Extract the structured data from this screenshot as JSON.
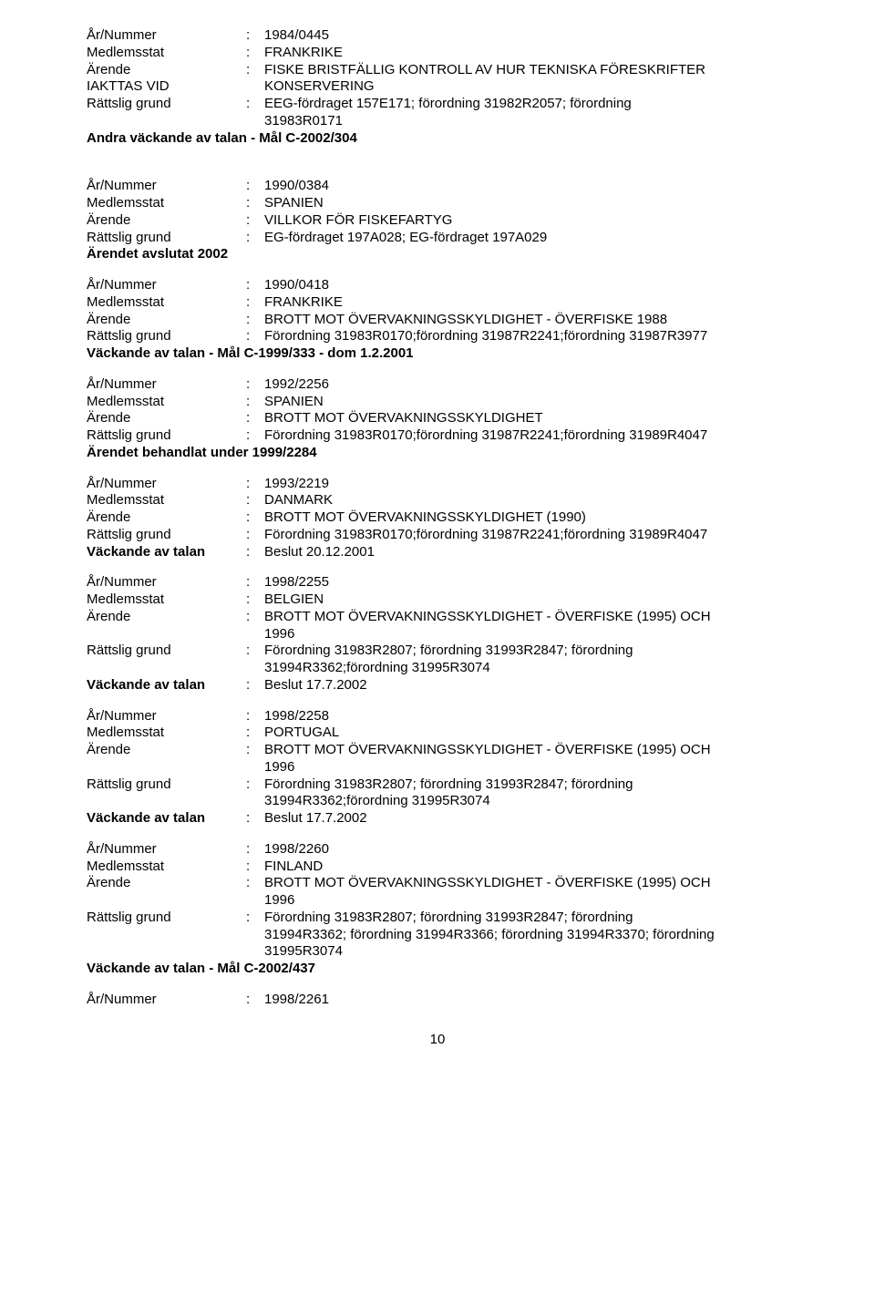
{
  "labels": {
    "year_number": "År/Nummer",
    "member_state": "Medlemsstat",
    "matter": "Ärende",
    "legal_basis": "Rättslig grund",
    "bringing_action": "Väckande av talan"
  },
  "entries": [
    {
      "id": "e0",
      "rows": [
        {
          "label": "year_number",
          "value": "1984/0445"
        },
        {
          "label": "member_state",
          "value": "FRANKRIKE"
        },
        {
          "label": "matter",
          "value": "FISKE BRISTFÄLLIG KONTROLL AV HUR TEKNISKA FÖRESKRIFTER IAKTTAS VID KONSERVERING",
          "two_line": true,
          "line1": "FISKE BRISTFÄLLIG KONTROLL AV HUR TEKNISKA FÖRESKRIFTER",
          "line2_label": "IAKTTAS VID",
          "line2_value": "KONSERVERING"
        },
        {
          "label": "legal_basis",
          "value": "EEG-fördraget 157E171; förordning 31982R2057; förordning 31983R0171",
          "two_line_simple": true,
          "line1": "EEG-fördraget 157E171; förordning 31982R2057; förordning",
          "line2": "31983R0171"
        }
      ],
      "footer": "Andra väckande av talan - Mål C-2002/304",
      "footer_bold": true,
      "gap_after": true
    },
    {
      "id": "e1",
      "rows": [
        {
          "label": "year_number",
          "value": "1990/0384"
        },
        {
          "label": "member_state",
          "value": "SPANIEN"
        },
        {
          "label": "matter",
          "value": "VILLKOR FÖR FISKEFARTYG"
        },
        {
          "label": "legal_basis",
          "value": "EG-fördraget 197A028; EG-fördraget 197A029"
        }
      ],
      "footer": "Ärendet avslutat 2002",
      "footer_bold": true
    },
    {
      "id": "e2",
      "rows": [
        {
          "label": "year_number",
          "value": "1990/0418"
        },
        {
          "label": "member_state",
          "value": "FRANKRIKE"
        },
        {
          "label": "matter",
          "value": "BROTT MOT ÖVERVAKNINGSSKYLDIGHET - ÖVERFISKE 1988"
        },
        {
          "label": "legal_basis",
          "value": "Förordning 31983R0170;förordning 31987R2241;förordning 31987R3977"
        }
      ],
      "footer": "Väckande av talan - Mål C-1999/333 - dom 1.2.2001",
      "footer_bold": true
    },
    {
      "id": "e3",
      "rows": [
        {
          "label": "year_number",
          "value": "1992/2256"
        },
        {
          "label": "member_state",
          "value": "SPANIEN"
        },
        {
          "label": "matter",
          "value": "BROTT MOT ÖVERVAKNINGSSKYLDIGHET"
        },
        {
          "label": "legal_basis",
          "value": "Förordning 31983R0170;förordning 31987R2241;förordning 31989R4047"
        }
      ],
      "footer": "Ärendet behandlat under 1999/2284",
      "footer_bold": true
    },
    {
      "id": "e4",
      "rows": [
        {
          "label": "year_number",
          "value": "1993/2219"
        },
        {
          "label": "member_state",
          "value": "DANMARK"
        },
        {
          "label": "matter",
          "value": "BROTT MOT ÖVERVAKNINGSSKYLDIGHET (1990)"
        },
        {
          "label": "legal_basis",
          "value": "Förordning 31983R0170;förordning 31987R2241;förordning 31989R4047"
        },
        {
          "label": "bringing_action",
          "value": "Beslut 20.12.2001",
          "bold_label": true
        }
      ]
    },
    {
      "id": "e5",
      "rows": [
        {
          "label": "year_number",
          "value": "1998/2255"
        },
        {
          "label": "member_state",
          "value": "BELGIEN"
        },
        {
          "label": "matter",
          "two_line_simple": true,
          "line1": "BROTT MOT ÖVERVAKNINGSSKYLDIGHET - ÖVERFISKE (1995) OCH",
          "line2": "1996"
        },
        {
          "label": "legal_basis",
          "two_line_simple": true,
          "line1": "Förordning 31983R2807; förordning 31993R2847; förordning",
          "line2": "31994R3362;förordning 31995R3074"
        },
        {
          "label": "bringing_action",
          "value": "Beslut 17.7.2002",
          "bold_label": true
        }
      ]
    },
    {
      "id": "e6",
      "rows": [
        {
          "label": "year_number",
          "value": "1998/2258"
        },
        {
          "label": "member_state",
          "value": "PORTUGAL"
        },
        {
          "label": "matter",
          "two_line_simple": true,
          "line1": "BROTT MOT ÖVERVAKNINGSSKYLDIGHET - ÖVERFISKE (1995) OCH",
          "line2": "1996"
        },
        {
          "label": "legal_basis",
          "two_line_simple": true,
          "line1": "Förordning 31983R2807; förordning 31993R2847; förordning",
          "line2": "31994R3362;förordning 31995R3074"
        },
        {
          "label": "bringing_action",
          "value": "Beslut 17.7.2002",
          "bold_label": true
        }
      ]
    },
    {
      "id": "e7",
      "rows": [
        {
          "label": "year_number",
          "value": "1998/2260"
        },
        {
          "label": "member_state",
          "value": "FINLAND"
        },
        {
          "label": "matter",
          "two_line_simple": true,
          "line1": "BROTT MOT ÖVERVAKNINGSSKYLDIGHET - ÖVERFISKE (1995) OCH",
          "line2": "1996"
        },
        {
          "label": "legal_basis",
          "three_line": true,
          "line1": "Förordning 31983R2807; förordning 31993R2847; förordning",
          "line2": "31994R3362; förordning 31994R3366; förordning 31994R3370; förordning",
          "line3": "31995R3074"
        }
      ],
      "footer": "Väckande av talan - Mål C-2002/437",
      "footer_bold": true
    },
    {
      "id": "e8",
      "rows": [
        {
          "label": "year_number",
          "value": "1998/2261"
        }
      ]
    }
  ],
  "page_number": "10"
}
